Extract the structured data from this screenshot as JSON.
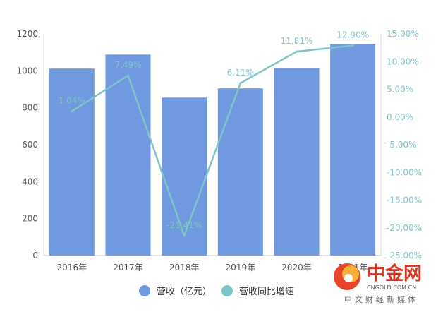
{
  "chart_data": {
    "type": "bar",
    "categories": [
      "2016年",
      "2017年",
      "2018年",
      "2019年",
      "2020年",
      "2021年"
    ],
    "series": [
      {
        "name": "营收（亿元）",
        "type": "bar",
        "axis": "left",
        "color": "#7099e0",
        "values": [
          1012,
          1088,
          855,
          905,
          1015,
          1145
        ]
      },
      {
        "name": "营收同比增速",
        "type": "line",
        "axis": "right",
        "color": "#7ec4c8",
        "values": [
          1.04,
          7.49,
          -21.41,
          6.11,
          11.81,
          12.9
        ],
        "labels": [
          "1.04%",
          "7.49%",
          "-21.41%",
          "6.11%",
          "11.81%",
          "12.90%"
        ]
      }
    ],
    "ylim": [
      0,
      1200
    ],
    "yticks": [
      0,
      200,
      400,
      600,
      800,
      1000,
      1200
    ],
    "y2lim": [
      -25,
      15
    ],
    "y2ticks": [
      "15.00%",
      "10.00%",
      "5.00%",
      "0.00%",
      "-5.00%",
      "-10.00%",
      "-15.00%",
      "-20.00%",
      "-25.00%"
    ],
    "grid": false,
    "legend_position": "bottom"
  },
  "watermark": {
    "brand": "中金网",
    "domain": "CNGOLD.COM.CN",
    "tagline": "中文财经新媒体",
    "color": "#d9301c"
  }
}
